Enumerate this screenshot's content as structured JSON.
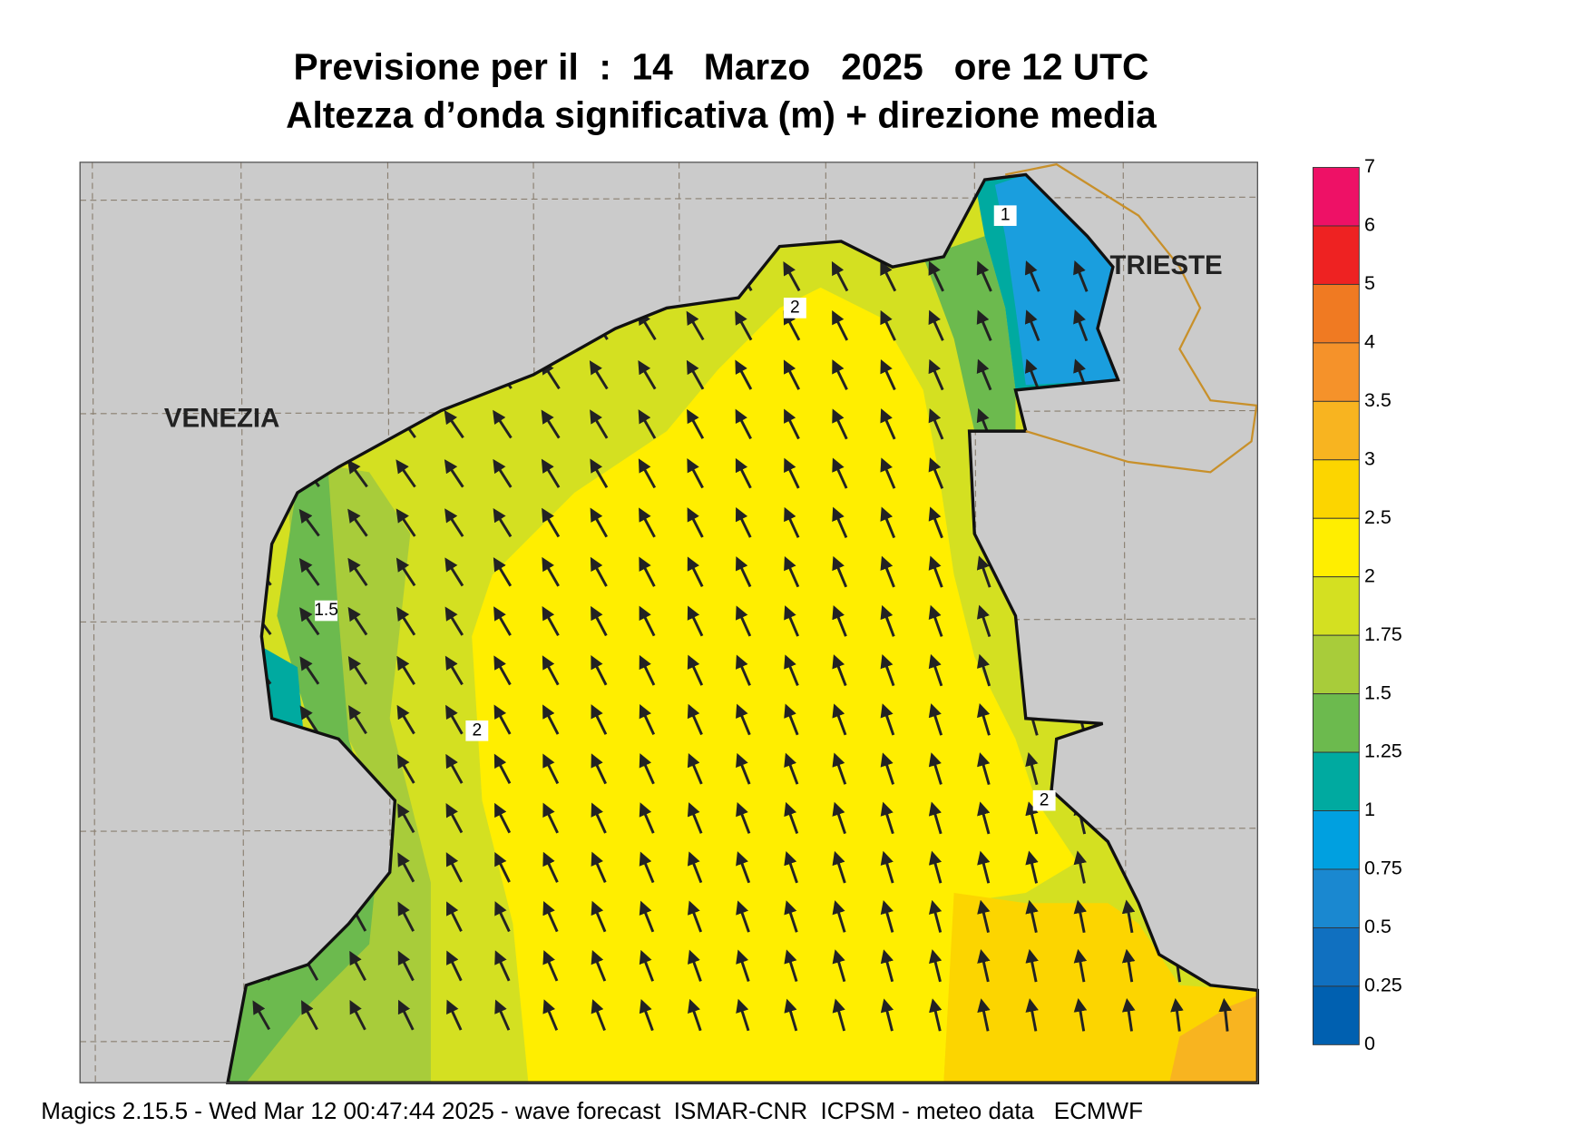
{
  "title": "Previsione per il  :  14   Marzo   2025   ore 12 UTC",
  "subtitle": "Altezza d’onda significativa (m) + direzione media",
  "places": [
    "VENEZIA",
    "TRIESTE"
  ],
  "contour_labels": [
    "1",
    "2",
    "1.5",
    "2",
    "2"
  ],
  "legend": {
    "levels": [
      7,
      6,
      5,
      4,
      3.5,
      3,
      2.5,
      2,
      1.75,
      1.5,
      1.25,
      1,
      0.75,
      0.5,
      0.25,
      0
    ],
    "colors": [
      "#ee1166",
      "#ee2222",
      "#f07a22",
      "#f5922a",
      "#f8b420",
      "#fcd500",
      "#ffee00",
      "#d4e021",
      "#a8cc3a",
      "#6cba4e",
      "#00aaa0",
      "#00a0e0",
      "#1a88d0",
      "#1070c0",
      "#0060b0"
    ]
  },
  "footer": "Magics 2.15.5 - Wed Mar 12 00:47:44 2025 - wave forecast  ISMAR-CNR  ICPSM - meteo data   ECMWF"
}
